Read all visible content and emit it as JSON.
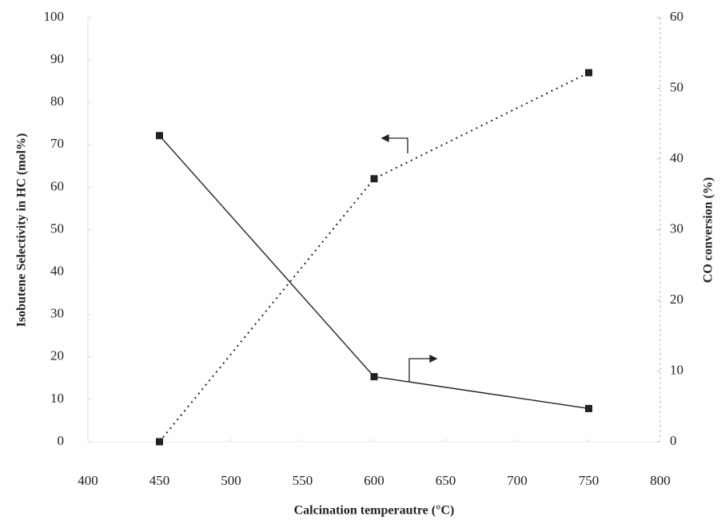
{
  "chart_data": {
    "type": "line",
    "x_label": "Calcination temperautre (°C)",
    "y_label": "Isobutene Selectivity in HC (mol%)",
    "y2_label": "CO conversion (%)",
    "x": [
      450,
      600,
      750
    ],
    "series": [
      {
        "color": "#222222",
        "style": "dotted",
        "values": [
          0,
          62,
          87
        ]
      },
      {
        "color": "#222222",
        "style": "solid",
        "axis": "y2",
        "values": [
          43.3,
          9.2,
          4.7
        ]
      }
    ],
    "xlim": [
      400,
      800
    ],
    "xticks": [
      400,
      450,
      500,
      550,
      600,
      650,
      700,
      750,
      800
    ],
    "ylim": [
      0,
      100
    ],
    "yticks": [
      0,
      10,
      20,
      30,
      40,
      50,
      60,
      70,
      80,
      90,
      100
    ],
    "y2lim": [
      0,
      60
    ],
    "y2ticks": [
      0,
      10,
      20,
      30,
      40,
      50,
      60
    ],
    "grid": false
  }
}
